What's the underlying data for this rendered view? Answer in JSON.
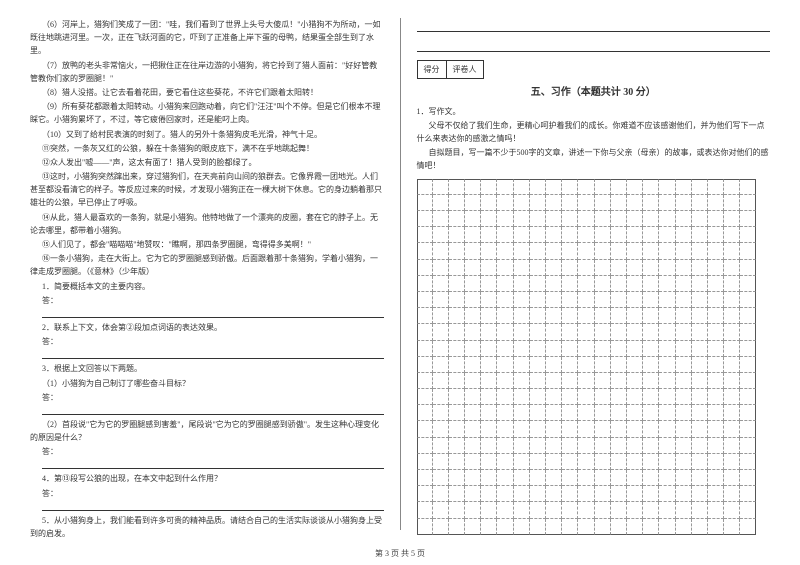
{
  "left": {
    "paragraphs": [
      "（6）河岸上，猎狗们笑成了一团：\"哇，我们看到了世界上头号大傻瓜！\"小猎狗不为所动，一如既往地跳进河里。一次，正在飞跃河面的它，吓到了正准备上岸下蛋的母鸭，结果蛋全部生到了水里。",
      "（7）放鸭的老头非常恼火，一把揪住正在往岸边游的小猎狗，将它拎到了猎人面前：\"好好管教管教你们家的罗圈腿！\"",
      "（8）猎人没搭。让它去看着花田，要它看住这些葵花，不许它们跟着太阳转！",
      "（9）所有葵花都跟着太阳转动。小猎狗来回跑动着，向它们\"汪汪\"叫个不停。但是它们根本不理睬它。小猎狗累坏了，不过，等它疲倦回家时，还是能叼上肉。",
      "（10）又到了给村民表演的时刻了。猎人的另外十条猎狗皮毛光滑，神气十足。",
      "⑪突然，一条灰又红的公狼，躲在十条猎狗的眼皮底下，满不在乎地跳起舞！",
      "⑫众人发出\"嘘——\"声，这太有面了！猎人受到的脸都绿了。",
      "⑬这时，小猎狗突然蹿出来，穿过猎狗们，在天亮前向山间的狼群去。它像界霞一团地光。人们甚至都没看清它的样子。等反应过来的时候，才发现小猎狗正在一棵大树下休息。它的身边躺着那只雄壮的公狼，早已停止了呼吸。",
      "⑭从此，猎人最喜欢的一条狗，就是小猎狗。他特地做了一个漂亮的皮圈，套在它的脖子上。无论去哪里，都带着小猎狗。",
      "⑮人们见了，都会\"喵喵喵\"地赞叹：\"瞧啊，那四条罗圈腿，弯得得多美啊！\"",
      "⑯一条小猎狗，走在大街上。它为它的罗圈腿感到骄傲。后面跟着那十条猎狗，学着小猎狗，一律走成罗圈腿。（《意林》（少年版）"
    ],
    "questions": [
      {
        "q": "1．简要概括本文的主要内容。",
        "ans_lines": 1,
        "prefix": "答："
      },
      {
        "q": "2．联系上下文，体会第②段加点词语的表达效果。",
        "ans_lines": 1,
        "prefix": "答："
      },
      {
        "q": "3．根据上文回答以下两题。",
        "ans_lines": 0
      },
      {
        "q": "（1）小猎狗为自己制订了哪些奋斗目标？",
        "ans_lines": 1,
        "prefix": "答："
      },
      {
        "q": "（2）首段说\"它为它的罗圈腿感到害羞\"，尾段说\"它为它的罗圈腿感到骄傲\"。发生这种心理变化的原因是什么？",
        "ans_lines": 1,
        "prefix": "答："
      },
      {
        "q": "4．第⑬段写公狼的出现，在本文中起到什么作用？",
        "ans_lines": 1,
        "prefix": "答："
      },
      {
        "q": "5．从小猎狗身上，我们能看到许多可贵的精神品质。请结合自己的生活实际谈谈从小猎狗身上受到的启发。",
        "ans_lines": 0
      }
    ]
  },
  "right": {
    "score_labels": [
      "得分",
      "评卷人"
    ],
    "section_title": "五、习作（本题共计 30 分）",
    "writing_prompt_num": "1．写作文。",
    "writing_prompt_1": "父母不仅给了我们生命，更精心呵护着我们的成长。你难道不应该感谢他们，并为他们写下一点什么来表达你的感激之情吗！",
    "writing_prompt_2": "自拟题目，写一篇不少于500字的文章，讲述一下你与父亲（母亲）的故事，或表达你对他们的感情吧！",
    "grid": {
      "rows": 22,
      "cols": 21
    }
  },
  "footer": "第 3 页  共 5 页",
  "colors": {
    "text": "#333333",
    "border": "#333333",
    "grid_dash": "#999999",
    "bg": "#ffffff"
  }
}
